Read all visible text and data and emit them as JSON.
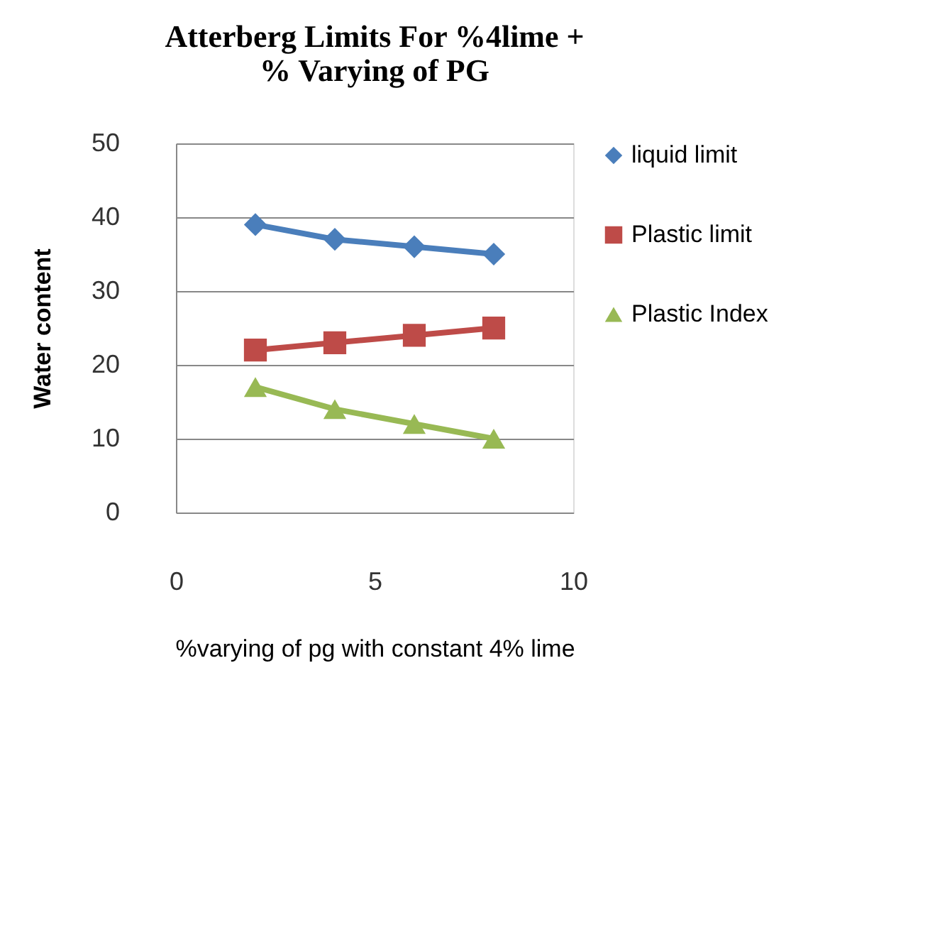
{
  "chart_data": {
    "type": "line",
    "title": "Atterberg Limits For %4lime +\n% Varying of PG",
    "xlabel": "%varying of pg with constant 4% lime",
    "ylabel": "Water content",
    "x": [
      2,
      4,
      6,
      8
    ],
    "series": [
      {
        "name": "liquid limit",
        "color": "#4a7ebb",
        "marker": "diamond",
        "values": [
          39,
          37,
          36,
          35
        ]
      },
      {
        "name": "Plastic limit",
        "color": "#be4b48",
        "marker": "square",
        "values": [
          22,
          23,
          24,
          25
        ]
      },
      {
        "name": "Plastic Index",
        "color": "#98b954",
        "marker": "triangle",
        "values": [
          17,
          14,
          12,
          10
        ]
      }
    ],
    "xlim": [
      0,
      10
    ],
    "xticks": [
      0,
      5,
      10
    ],
    "ylim": [
      0,
      50
    ],
    "yticks": [
      0,
      10,
      20,
      30,
      40,
      50
    ],
    "grid": "y",
    "legend": "right",
    "line_style": "solid"
  }
}
